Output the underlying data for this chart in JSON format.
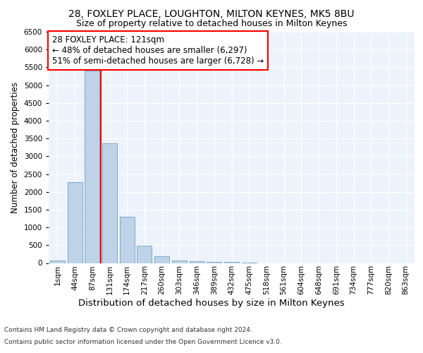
{
  "title1": "28, FOXLEY PLACE, LOUGHTON, MILTON KEYNES, MK5 8BU",
  "title2": "Size of property relative to detached houses in Milton Keynes",
  "xlabel": "Distribution of detached houses by size in Milton Keynes",
  "ylabel": "Number of detached properties",
  "footnote1": "Contains HM Land Registry data © Crown copyright and database right 2024.",
  "footnote2": "Contains public sector information licensed under the Open Government Licence v3.0.",
  "bar_labels": [
    "1sqm",
    "44sqm",
    "87sqm",
    "131sqm",
    "174sqm",
    "217sqm",
    "260sqm",
    "303sqm",
    "346sqm",
    "389sqm",
    "432sqm",
    "475sqm",
    "518sqm",
    "561sqm",
    "604sqm",
    "648sqm",
    "691sqm",
    "734sqm",
    "777sqm",
    "820sqm",
    "863sqm"
  ],
  "bar_values": [
    75,
    2280,
    5400,
    3370,
    1300,
    480,
    185,
    75,
    50,
    30,
    20,
    15,
    0,
    0,
    0,
    0,
    0,
    0,
    0,
    0,
    0
  ],
  "bar_color": "#bed3e8",
  "bar_edge_color": "#7aaac8",
  "vline_x": 2.5,
  "vline_color": "red",
  "annotation_text": "28 FOXLEY PLACE: 121sqm\n← 48% of detached houses are smaller (6,297)\n51% of semi-detached houses are larger (6,728) →",
  "annotation_box_color": "white",
  "annotation_box_edge": "red",
  "ylim": [
    0,
    6500
  ],
  "yticks": [
    0,
    500,
    1000,
    1500,
    2000,
    2500,
    3000,
    3500,
    4000,
    4500,
    5000,
    5500,
    6000,
    6500
  ],
  "background_color": "#eef2fb",
  "title1_fontsize": 10,
  "title2_fontsize": 9,
  "xlabel_fontsize": 9.5,
  "ylabel_fontsize": 8.5,
  "tick_fontsize": 7.5,
  "annotation_fontsize": 8.5,
  "footnote_fontsize": 6.5
}
